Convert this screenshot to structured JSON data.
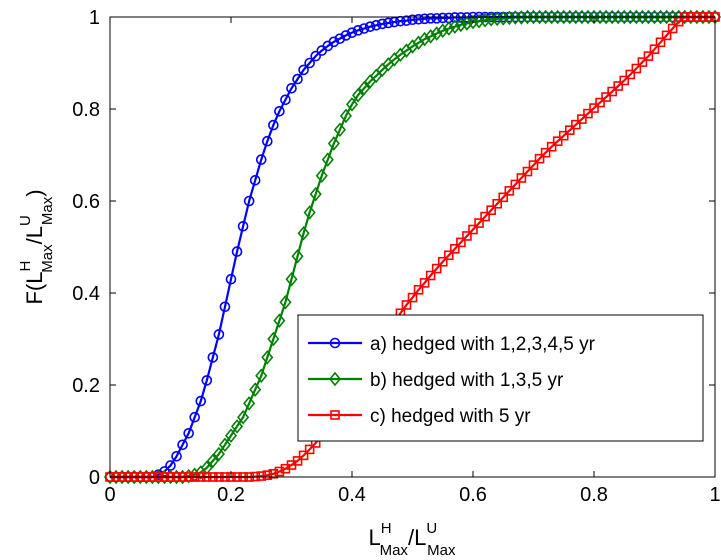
{
  "chart_data": {
    "type": "line",
    "xlim": [
      0,
      1
    ],
    "ylim": [
      0,
      1
    ],
    "xticks": [
      "0",
      "0.2",
      "0.4",
      "0.6",
      "0.8",
      "1"
    ],
    "yticks": [
      "0",
      "0.2",
      "0.4",
      "0.6",
      "0.8",
      "1"
    ],
    "xlabel": {
      "base1": "L",
      "sup1": "H",
      "sub1": "Max",
      "slash": "/",
      "base2": "L",
      "sup2": "U",
      "sub2": "Max"
    },
    "ylabel": {
      "pre": "F(",
      "base1": "L",
      "sup1": "H",
      "sub1": "Max",
      "slash": "/",
      "base2": "L",
      "sup2": "U",
      "sub2": "Max",
      "post": ")"
    },
    "grid": false,
    "legend_position": "lower-right",
    "series": [
      {
        "name": "a) hedged with 1,2,3,4,5 yr",
        "color": "#0000ff",
        "marker": "circle",
        "x": [
          0.0,
          0.01,
          0.02,
          0.03,
          0.04,
          0.05,
          0.06,
          0.07,
          0.08,
          0.09,
          0.1,
          0.11,
          0.12,
          0.13,
          0.14,
          0.15,
          0.16,
          0.17,
          0.18,
          0.19,
          0.2,
          0.21,
          0.22,
          0.23,
          0.24,
          0.25,
          0.26,
          0.27,
          0.28,
          0.29,
          0.3,
          0.31,
          0.32,
          0.33,
          0.34,
          0.35,
          0.36,
          0.37,
          0.38,
          0.39,
          0.4,
          0.41,
          0.42,
          0.43,
          0.44,
          0.45,
          0.46,
          0.47,
          0.48,
          0.49,
          0.5,
          0.51,
          0.52,
          0.53,
          0.54,
          0.55,
          0.56,
          0.57,
          0.58,
          0.59,
          0.6,
          0.61,
          0.62,
          0.63,
          0.64,
          0.65,
          0.66,
          0.67,
          0.68,
          0.69,
          0.7,
          0.71,
          0.72,
          0.73,
          0.74,
          0.75,
          0.76,
          0.77,
          0.78,
          0.79,
          0.8,
          0.81,
          0.82,
          0.83,
          0.84,
          0.85,
          0.86,
          0.87,
          0.88,
          0.89,
          0.9,
          0.91,
          0.92,
          0.93,
          0.94,
          0.95,
          0.96,
          0.97,
          0.98,
          0.99,
          1.0
        ],
        "y": [
          0.0,
          0.0,
          0.0,
          0.0,
          0.0,
          0.0,
          0.0,
          0.0,
          0.005,
          0.012,
          0.025,
          0.045,
          0.07,
          0.095,
          0.13,
          0.165,
          0.21,
          0.26,
          0.31,
          0.37,
          0.43,
          0.49,
          0.545,
          0.6,
          0.645,
          0.69,
          0.73,
          0.765,
          0.795,
          0.82,
          0.845,
          0.865,
          0.885,
          0.9,
          0.915,
          0.927,
          0.937,
          0.946,
          0.953,
          0.96,
          0.966,
          0.971,
          0.975,
          0.979,
          0.982,
          0.985,
          0.987,
          0.989,
          0.991,
          0.992,
          0.994,
          0.995,
          0.996,
          0.997,
          0.997,
          0.998,
          0.998,
          0.999,
          0.999,
          0.999,
          1.0,
          1.0,
          1.0,
          1.0,
          1.0,
          1.0,
          1.0,
          1.0,
          1.0,
          1.0,
          1.0,
          1.0,
          1.0,
          1.0,
          1.0,
          1.0,
          1.0,
          1.0,
          1.0,
          1.0,
          1.0,
          1.0,
          1.0,
          1.0,
          1.0,
          1.0,
          1.0,
          1.0,
          1.0,
          1.0,
          1.0,
          1.0,
          1.0,
          1.0,
          1.0,
          1.0,
          1.0,
          1.0,
          1.0,
          1.0,
          1.0
        ]
      },
      {
        "name": "b) hedged with 1,3,5 yr",
        "color": "#008000",
        "marker": "diamond",
        "x": [
          0.0,
          0.01,
          0.02,
          0.03,
          0.04,
          0.05,
          0.06,
          0.07,
          0.08,
          0.09,
          0.1,
          0.11,
          0.12,
          0.13,
          0.14,
          0.15,
          0.16,
          0.17,
          0.18,
          0.19,
          0.2,
          0.21,
          0.22,
          0.23,
          0.24,
          0.25,
          0.26,
          0.27,
          0.28,
          0.29,
          0.3,
          0.31,
          0.32,
          0.33,
          0.34,
          0.35,
          0.36,
          0.37,
          0.38,
          0.39,
          0.4,
          0.41,
          0.42,
          0.43,
          0.44,
          0.45,
          0.46,
          0.47,
          0.48,
          0.49,
          0.5,
          0.51,
          0.52,
          0.53,
          0.54,
          0.55,
          0.56,
          0.57,
          0.58,
          0.59,
          0.6,
          0.61,
          0.62,
          0.63,
          0.64,
          0.65,
          0.66,
          0.67,
          0.68,
          0.69,
          0.7,
          0.71,
          0.72,
          0.73,
          0.74,
          0.75,
          0.76,
          0.77,
          0.78,
          0.79,
          0.8,
          0.81,
          0.82,
          0.83,
          0.84,
          0.85,
          0.86,
          0.87,
          0.88,
          0.89,
          0.9,
          0.91,
          0.92,
          0.93,
          0.94,
          0.95,
          0.96,
          0.97,
          0.98,
          0.99,
          1.0
        ],
        "y": [
          0.0,
          0.0,
          0.0,
          0.0,
          0.0,
          0.0,
          0.0,
          0.0,
          0.0,
          0.0,
          0.0,
          0.0,
          0.0,
          0.002,
          0.005,
          0.01,
          0.02,
          0.035,
          0.05,
          0.07,
          0.09,
          0.11,
          0.13,
          0.16,
          0.19,
          0.22,
          0.26,
          0.3,
          0.34,
          0.38,
          0.43,
          0.48,
          0.53,
          0.575,
          0.615,
          0.655,
          0.69,
          0.725,
          0.755,
          0.785,
          0.81,
          0.83,
          0.845,
          0.86,
          0.872,
          0.885,
          0.897,
          0.908,
          0.918,
          0.927,
          0.936,
          0.944,
          0.952,
          0.958,
          0.964,
          0.97,
          0.975,
          0.979,
          0.983,
          0.986,
          0.989,
          0.991,
          0.993,
          0.995,
          0.996,
          0.997,
          0.998,
          0.999,
          0.999,
          1.0,
          1.0,
          1.0,
          1.0,
          1.0,
          1.0,
          1.0,
          1.0,
          1.0,
          1.0,
          1.0,
          1.0,
          1.0,
          1.0,
          1.0,
          1.0,
          1.0,
          1.0,
          1.0,
          1.0,
          1.0,
          1.0,
          1.0,
          1.0,
          1.0,
          1.0,
          1.0,
          1.0,
          1.0,
          1.0,
          1.0,
          1.0
        ]
      },
      {
        "name": "c) hedged with 5 yr",
        "color": "#ff0000",
        "marker": "square",
        "x": [
          0.0,
          0.01,
          0.02,
          0.03,
          0.04,
          0.05,
          0.06,
          0.07,
          0.08,
          0.09,
          0.1,
          0.11,
          0.12,
          0.13,
          0.14,
          0.15,
          0.16,
          0.17,
          0.18,
          0.19,
          0.2,
          0.21,
          0.22,
          0.23,
          0.24,
          0.25,
          0.26,
          0.27,
          0.28,
          0.29,
          0.3,
          0.31,
          0.32,
          0.33,
          0.34,
          0.35,
          0.36,
          0.37,
          0.38,
          0.39,
          0.4,
          0.41,
          0.42,
          0.43,
          0.44,
          0.45,
          0.46,
          0.47,
          0.48,
          0.49,
          0.5,
          0.51,
          0.52,
          0.53,
          0.54,
          0.55,
          0.56,
          0.57,
          0.58,
          0.59,
          0.6,
          0.61,
          0.62,
          0.63,
          0.64,
          0.65,
          0.66,
          0.67,
          0.68,
          0.69,
          0.7,
          0.71,
          0.72,
          0.73,
          0.74,
          0.75,
          0.76,
          0.77,
          0.78,
          0.79,
          0.8,
          0.81,
          0.82,
          0.83,
          0.84,
          0.85,
          0.86,
          0.87,
          0.88,
          0.89,
          0.9,
          0.91,
          0.92,
          0.93,
          0.94,
          0.95,
          0.96,
          0.97,
          0.98,
          0.99,
          1.0
        ],
        "y": [
          0.0,
          0.0,
          0.0,
          0.0,
          0.0,
          0.0,
          0.0,
          0.0,
          0.0,
          0.0,
          0.0,
          0.0,
          0.0,
          0.0,
          0.0,
          0.0,
          0.0,
          0.0,
          0.0,
          0.0,
          0.0,
          0.0,
          0.0,
          0.0,
          0.001,
          0.002,
          0.004,
          0.007,
          0.012,
          0.018,
          0.026,
          0.035,
          0.047,
          0.06,
          0.074,
          0.09,
          0.108,
          0.127,
          0.148,
          0.17,
          0.19,
          0.212,
          0.235,
          0.257,
          0.28,
          0.3,
          0.32,
          0.338,
          0.356,
          0.374,
          0.39,
          0.407,
          0.422,
          0.438,
          0.453,
          0.468,
          0.482,
          0.496,
          0.51,
          0.524,
          0.538,
          0.552,
          0.566,
          0.58,
          0.594,
          0.608,
          0.622,
          0.636,
          0.65,
          0.664,
          0.678,
          0.692,
          0.705,
          0.718,
          0.73,
          0.742,
          0.754,
          0.766,
          0.778,
          0.79,
          0.802,
          0.814,
          0.826,
          0.838,
          0.85,
          0.862,
          0.875,
          0.888,
          0.902,
          0.915,
          0.93,
          0.945,
          0.96,
          0.975,
          0.99,
          1.0,
          1.0,
          1.0,
          1.0,
          1.0,
          1.0
        ]
      }
    ]
  }
}
